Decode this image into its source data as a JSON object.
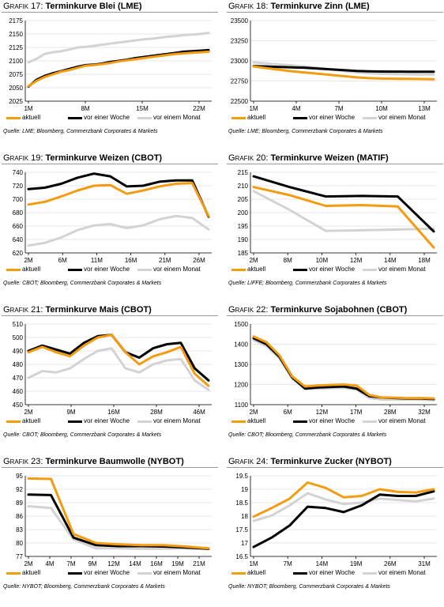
{
  "colors": {
    "aktuell": "#f39c12",
    "woche": "#000000",
    "monat": "#d3d3d3",
    "grid": "#d0d0d0",
    "axis": "#000000"
  },
  "chart_data": [
    {
      "type": "line",
      "prefix": "Grafik 17:",
      "title": "Terminkurve Blei (LME)",
      "xticks": [
        "1M",
        "8M",
        "15M",
        "22M"
      ],
      "yticks": [
        2025,
        2050,
        2075,
        2100,
        2125,
        2150,
        2175
      ],
      "ylim": [
        2025,
        2175
      ],
      "series": [
        {
          "name": "aktuell",
          "color_key": "aktuell",
          "values": [
            2053,
            2063,
            2070,
            2075,
            2080,
            2083,
            2087,
            2091,
            2092,
            2094,
            2096,
            2099,
            2101,
            2103,
            2105,
            2107,
            2109,
            2111,
            2113,
            2114,
            2115,
            2116,
            2117
          ]
        },
        {
          "name": "vor einer Woche",
          "color_key": "woche",
          "values": [
            2052,
            2065,
            2072,
            2077,
            2081,
            2085,
            2089,
            2092,
            2093,
            2095,
            2098,
            2100,
            2102,
            2105,
            2107,
            2109,
            2111,
            2113,
            2115,
            2117,
            2118,
            2119,
            2120
          ]
        },
        {
          "name": "vor einem Monat",
          "color_key": "monat",
          "values": [
            2097,
            2104,
            2113,
            2116,
            2118,
            2121,
            2125,
            2126,
            2128,
            2130,
            2132,
            2134,
            2136,
            2138,
            2140,
            2141,
            2143,
            2145,
            2146,
            2148,
            2149,
            2150,
            2152
          ]
        }
      ],
      "source": "Quelle: LME; Bloomberg, Commerzbank Corporates & Markets"
    },
    {
      "type": "line",
      "prefix": "Grafik 18:",
      "title": "Terminkurve Zinn (LME)",
      "xticks": [
        "1M",
        "4M",
        "7M",
        "10M",
        "13M"
      ],
      "yticks": [
        22500,
        22750,
        23000,
        23250,
        23500
      ],
      "ylim": [
        22500,
        23500
      ],
      "series": [
        {
          "name": "aktuell",
          "color_key": "aktuell",
          "values": [
            22930,
            22910,
            22890,
            22870,
            22855,
            22840,
            22825,
            22810,
            22795,
            22785,
            22780,
            22778,
            22776,
            22775,
            22772
          ]
        },
        {
          "name": "vor einer Woche",
          "color_key": "woche",
          "values": [
            22935,
            22930,
            22925,
            22920,
            22915,
            22905,
            22895,
            22885,
            22875,
            22870,
            22868,
            22867,
            22866,
            22866,
            22865
          ]
        },
        {
          "name": "vor einem Monat",
          "color_key": "monat",
          "values": [
            22980,
            22968,
            22955,
            22945,
            22930,
            22912,
            22893,
            22875,
            22858,
            22845,
            22838,
            22834,
            22832,
            22830,
            22830
          ]
        }
      ],
      "source": "Quelle: LME; Bloomberg, Commerzbank Corporates & Markets"
    },
    {
      "type": "line",
      "prefix": "Grafik 19:",
      "title": "Terminkurve Weizen (CBOT)",
      "xticks": [
        "2M",
        "6M",
        "11M",
        "16M",
        "21M",
        "26M"
      ],
      "yticks": [
        620,
        640,
        660,
        680,
        700,
        720,
        740
      ],
      "ylim": [
        620,
        740
      ],
      "series": [
        {
          "name": "aktuell",
          "color_key": "aktuell",
          "values": [
            692,
            696,
            704,
            713,
            720,
            721,
            708,
            713,
            719,
            723,
            724,
            675
          ]
        },
        {
          "name": "vor einer Woche",
          "color_key": "woche",
          "values": [
            715,
            717,
            723,
            732,
            738,
            734,
            719,
            720,
            726,
            728,
            728,
            674
          ]
        },
        {
          "name": "vor einem Monat",
          "color_key": "monat",
          "values": [
            631,
            635,
            643,
            654,
            661,
            663,
            657,
            661,
            670,
            675,
            672,
            655
          ]
        }
      ],
      "source": "Quelle: CBOT; Bloomberg, Commerzbank Corporates & Markets"
    },
    {
      "type": "line",
      "prefix": "Grafik 20:",
      "title": "Terminkurve Weizen (MATIF)",
      "xticks": [
        "2M",
        "8M",
        "10M",
        "12M",
        "14M",
        "18M"
      ],
      "yticks": [
        185,
        190,
        195,
        200,
        205,
        210,
        215
      ],
      "ylim": [
        185,
        215
      ],
      "series": [
        {
          "name": "aktuell",
          "color_key": "aktuell",
          "values": [
            209.5,
            206.5,
            202.5,
            202.8,
            202.3,
            187.0
          ]
        },
        {
          "name": "vor einer Woche",
          "color_key": "woche",
          "values": [
            213.5,
            209.5,
            206.0,
            206.2,
            206.0,
            193.0
          ]
        },
        {
          "name": "vor einem Monat",
          "color_key": "monat",
          "values": [
            208.0,
            201.0,
            193.2,
            193.4,
            193.7,
            194.0
          ]
        }
      ],
      "source": "Quelle: LIFFE; Bloomberg, Commerzbank Corporates & Markets"
    },
    {
      "type": "line",
      "prefix": "Grafik 21:",
      "title": "Terminkurve Mais (CBOT)",
      "xticks": [
        "2M",
        "9M",
        "16M",
        "28M",
        "46M"
      ],
      "yticks": [
        450,
        460,
        470,
        480,
        490,
        500,
        510
      ],
      "ylim": [
        450,
        510
      ],
      "series": [
        {
          "name": "aktuell",
          "color_key": "aktuell",
          "values": [
            489,
            493,
            489,
            486,
            494,
            500,
            502,
            489,
            480,
            486,
            489,
            493,
            473,
            464
          ]
        },
        {
          "name": "vor einer Woche",
          "color_key": "woche",
          "values": [
            490,
            494,
            491,
            488,
            496,
            501,
            502,
            489,
            485,
            492,
            495,
            496,
            477,
            468
          ]
        },
        {
          "name": "vor einem Monat",
          "color_key": "monat",
          "values": [
            470,
            475,
            474,
            477,
            484,
            490,
            492,
            477,
            474,
            480,
            483,
            484,
            468,
            461
          ]
        }
      ],
      "source": "Quelle: CBOT; Bloomberg, Commerzbank Corporates & Markets"
    },
    {
      "type": "line",
      "prefix": "Grafik 22:",
      "title": "Terminkurve Sojabohnen (CBOT)",
      "xticks": [
        "2M",
        "6M",
        "12M",
        "17M",
        "28M",
        "32M"
      ],
      "yticks": [
        1100,
        1200,
        1300,
        1400,
        1500
      ],
      "ylim": [
        1100,
        1500
      ],
      "series": [
        {
          "name": "aktuell",
          "color_key": "aktuell",
          "values": [
            1438,
            1410,
            1345,
            1240,
            1190,
            1195,
            1198,
            1200,
            1195,
            1148,
            1135,
            1135,
            1132,
            1133,
            1131
          ]
        },
        {
          "name": "vor einer Woche",
          "color_key": "woche",
          "values": [
            1430,
            1400,
            1338,
            1235,
            1180,
            1185,
            1188,
            1190,
            1180,
            1142,
            1135,
            1133,
            1130,
            1130,
            1128
          ]
        },
        {
          "name": "vor einem Monat",
          "color_key": "monat",
          "values": [
            1420,
            1390,
            1330,
            1230,
            1178,
            1180,
            1182,
            1183,
            1175,
            1132,
            1125,
            1126,
            1125,
            1124,
            1123
          ]
        }
      ],
      "source": "Quelle: CBOT; Bloomberg, Commerzbank Corporates & Markets"
    },
    {
      "type": "line",
      "prefix": "Grafik 23:",
      "title": "Terminkurve Baumwolle (NYBOT)",
      "xticks": [
        "2M",
        "4M",
        "7M",
        "9M",
        "12M",
        "14M",
        "16M",
        "19M",
        "21M"
      ],
      "yticks": [
        77,
        80,
        83,
        86,
        89,
        92,
        95
      ],
      "ylim": [
        77,
        95
      ],
      "series": [
        {
          "name": "aktuell",
          "color_key": "aktuell",
          "values": [
            94.4,
            94.3,
            82.0,
            80.0,
            79.7,
            79.5,
            79.5,
            79.2,
            78.8
          ]
        },
        {
          "name": "vor einer Woche",
          "color_key": "woche",
          "values": [
            90.8,
            90.7,
            81.2,
            79.5,
            79.3,
            79.3,
            79.2,
            79.0,
            78.7
          ]
        },
        {
          "name": "vor einem Monat",
          "color_key": "monat",
          "values": [
            88.2,
            87.8,
            80.8,
            78.8,
            78.8,
            78.7,
            78.7,
            78.8,
            78.7
          ]
        }
      ],
      "source": "Quelle: NYBOT; Bloomberg, Commerzbank Corporates & Markets"
    },
    {
      "type": "line",
      "prefix": "Grafik 24:",
      "title": "Terminkurve Zucker (NYBOT)",
      "xticks": [
        "1M",
        "7M",
        "14M",
        "19M",
        "26M",
        "31M"
      ],
      "yticks": [
        16.5,
        17.0,
        17.5,
        18.0,
        18.5,
        19.0,
        19.5
      ],
      "ylim": [
        16.5,
        19.5
      ],
      "series": [
        {
          "name": "aktuell",
          "color_key": "aktuell",
          "values": [
            17.98,
            18.3,
            18.65,
            19.25,
            19.05,
            18.7,
            18.75,
            19.0,
            18.9,
            18.88,
            19.0
          ]
        },
        {
          "name": "vor einer Woche",
          "color_key": "woche",
          "values": [
            16.85,
            17.2,
            17.65,
            18.35,
            18.3,
            18.15,
            18.4,
            18.8,
            18.75,
            18.75,
            18.92
          ]
        },
        {
          "name": "vor einem Monat",
          "color_key": "monat",
          "values": [
            17.82,
            18.02,
            18.4,
            18.85,
            18.62,
            18.45,
            18.5,
            18.65,
            18.6,
            18.55,
            18.65
          ]
        }
      ],
      "source": "Quelle: NYBOT; Bloomberg, Commerzbank Corporates & Markets"
    }
  ]
}
